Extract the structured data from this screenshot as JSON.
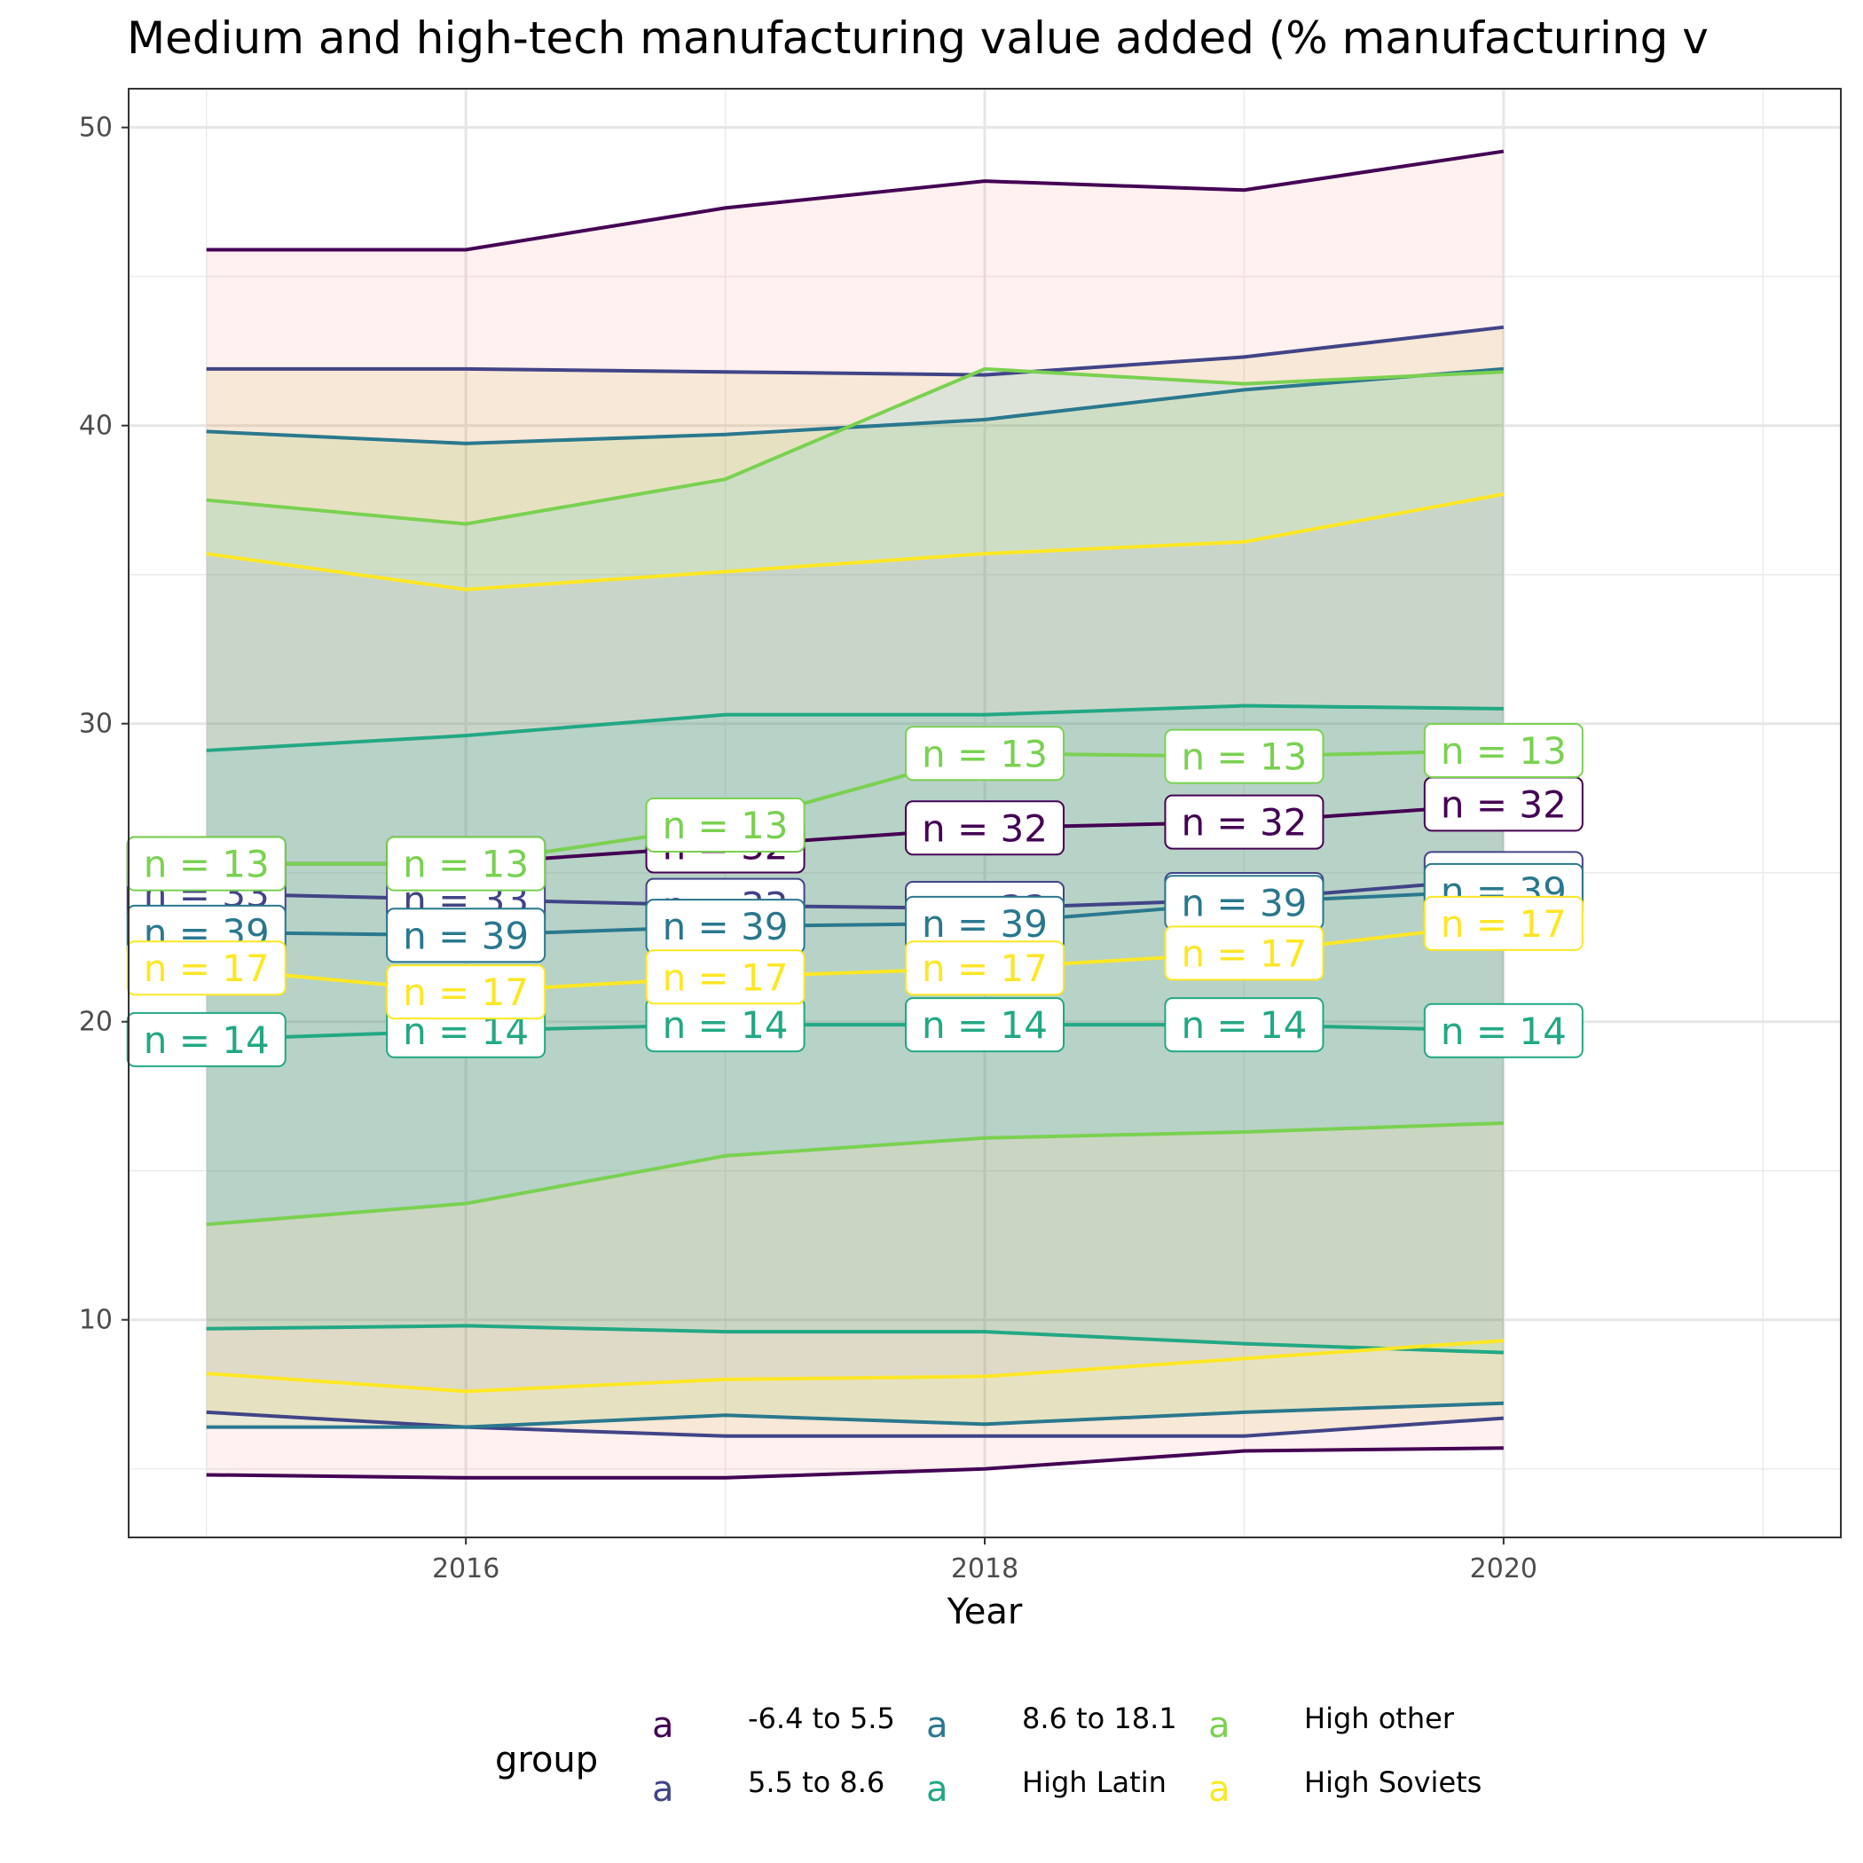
{
  "chart_data": {
    "type": "line",
    "title": "Medium and high-tech manufacturing value added (% manufacturing v",
    "xlabel": "Year",
    "ylabel": "",
    "x": [
      2015,
      2016,
      2017,
      2018,
      2019,
      2020
    ],
    "xlim": [
      2014.7,
      2021.3
    ],
    "ylim": [
      2.7,
      51.3
    ],
    "xticks": [
      2016,
      2018,
      2020
    ],
    "yticks": [
      10,
      20,
      30,
      40,
      50
    ],
    "grid": true,
    "legend": {
      "title": "group",
      "position": "bottom",
      "key_glyph": "a"
    },
    "series": [
      {
        "name": "-6.4 to 5.5",
        "color": "#440154",
        "n_label": "n = 32",
        "mean": [
          25.3,
          25.3,
          25.9,
          26.5,
          26.7,
          27.3
        ],
        "upper": [
          45.9,
          45.9,
          47.3,
          48.2,
          47.9,
          49.2
        ],
        "lower": [
          4.8,
          4.7,
          4.7,
          5.0,
          5.6,
          5.7
        ]
      },
      {
        "name": "5.5 to 8.6",
        "color": "#414487",
        "n_label": "n = 33",
        "mean": [
          24.3,
          24.1,
          23.9,
          23.8,
          24.1,
          24.8
        ],
        "upper": [
          41.9,
          41.9,
          41.8,
          41.7,
          42.3,
          43.3
        ],
        "lower": [
          6.9,
          6.4,
          6.1,
          6.1,
          6.1,
          6.7
        ]
      },
      {
        "name": "8.6 to 18.1",
        "color": "#2A788E",
        "n_label": "n = 39",
        "mean": [
          23.0,
          22.9,
          23.2,
          23.3,
          24.0,
          24.4
        ],
        "upper": [
          39.8,
          39.4,
          39.7,
          40.2,
          41.2,
          41.9
        ],
        "lower": [
          6.4,
          6.4,
          6.8,
          6.5,
          6.9,
          7.2
        ]
      },
      {
        "name": "High Latin",
        "color": "#22A884",
        "n_label": "n = 14",
        "mean": [
          19.4,
          19.7,
          19.9,
          19.9,
          19.9,
          19.7
        ],
        "upper": [
          29.1,
          29.6,
          30.3,
          30.3,
          30.6,
          30.5
        ],
        "lower": [
          9.7,
          9.8,
          9.6,
          9.6,
          9.2,
          8.9
        ]
      },
      {
        "name": "High other",
        "color": "#7AD151",
        "n_label": "n = 13",
        "mean": [
          25.3,
          25.3,
          26.6,
          29.0,
          28.9,
          29.1
        ],
        "upper": [
          37.5,
          36.7,
          38.2,
          41.9,
          41.4,
          41.8
        ],
        "lower": [
          13.2,
          13.9,
          15.5,
          16.1,
          16.3,
          16.6
        ]
      },
      {
        "name": "High Soviets",
        "color": "#FDE725",
        "n_label": "n = 17",
        "mean": [
          21.8,
          21.0,
          21.5,
          21.8,
          22.3,
          23.3
        ],
        "upper": [
          35.7,
          34.5,
          35.1,
          35.7,
          36.1,
          37.7
        ],
        "lower": [
          8.2,
          7.6,
          8.0,
          8.1,
          8.7,
          9.3
        ]
      }
    ],
    "ribbon_fill_colors": [
      "#F8766D",
      "#C49A00",
      "#53B400",
      "#00C094",
      "#00B6EB",
      "#A58AFF"
    ]
  }
}
